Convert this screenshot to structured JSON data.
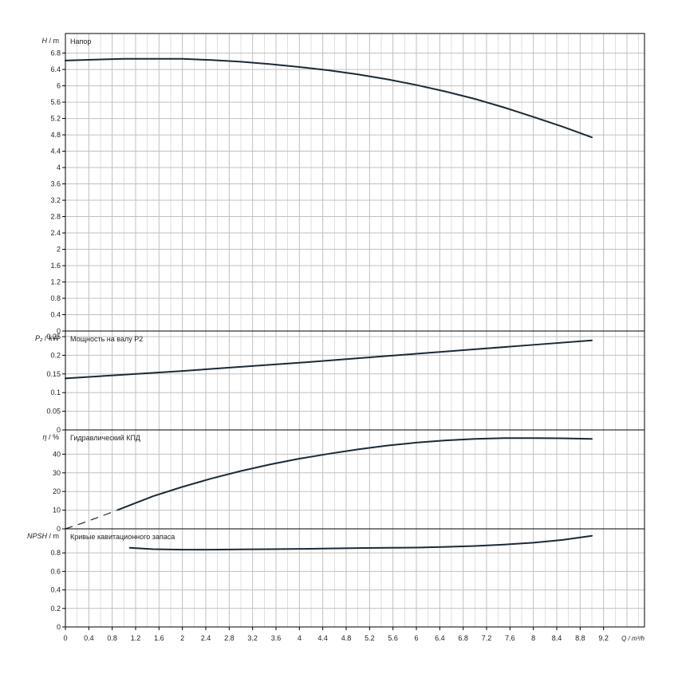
{
  "chart_data": [
    {
      "type": "line",
      "title": "Напор",
      "ylabel_symbol": "H",
      "ylabel_unit": "m",
      "xlim": [
        0,
        9.9
      ],
      "ylim": [
        0,
        7.28
      ],
      "yticks": [
        "0",
        "0.4",
        "0.8",
        "1.2",
        "1.6",
        "2",
        "2.4",
        "2.8",
        "3.2",
        "3.6",
        "4",
        "4.4",
        "4.8",
        "5.2",
        "5.6",
        "6",
        "6.4",
        "6.8"
      ],
      "series": [
        {
          "x": [
            0,
            0.5,
            1.0,
            1.5,
            2.0,
            2.5,
            3.0,
            3.5,
            4.0,
            4.5,
            5.0,
            5.5,
            6.0,
            6.5,
            7.0,
            7.5,
            8.0,
            8.5,
            9.0
          ],
          "y": [
            6.62,
            6.64,
            6.66,
            6.66,
            6.66,
            6.63,
            6.59,
            6.53,
            6.46,
            6.38,
            6.28,
            6.16,
            6.02,
            5.86,
            5.68,
            5.47,
            5.24,
            5.0,
            4.74
          ]
        }
      ]
    },
    {
      "type": "line",
      "title": "Мощность на валу P2",
      "ylabel_symbol": "P₂",
      "ylabel_unit": "kW",
      "xlim": [
        0,
        9.9
      ],
      "ylim": [
        0,
        0.265
      ],
      "yticks": [
        "0",
        "0.05",
        "0.1",
        "0.15",
        "0.2",
        "0.25"
      ],
      "series": [
        {
          "x": [
            0,
            1,
            2,
            3,
            4,
            5,
            6,
            7,
            8,
            9
          ],
          "y": [
            0.138,
            0.148,
            0.158,
            0.169,
            0.18,
            0.192,
            0.204,
            0.216,
            0.228,
            0.24
          ]
        }
      ]
    },
    {
      "type": "line",
      "title": "Гидравлический КПД",
      "ylabel_symbol": "η",
      "ylabel_unit": "%",
      "xlim": [
        0,
        9.9
      ],
      "ylim": [
        0,
        53
      ],
      "yticks": [
        "0",
        "10",
        "20",
        "30",
        "40"
      ],
      "series": [
        {
          "style": "dashed",
          "x": [
            0,
            0.3,
            0.6,
            0.9
          ],
          "y": [
            0,
            3.2,
            6.6,
            10.2
          ]
        },
        {
          "x": [
            0.9,
            1.5,
            2.0,
            2.5,
            3.0,
            3.5,
            4.0,
            4.5,
            5.0,
            5.5,
            6.0,
            6.5,
            7.0,
            7.5,
            8.0,
            8.5,
            9.0
          ],
          "y": [
            10.2,
            17.5,
            22.5,
            27.0,
            31.0,
            34.5,
            37.6,
            40.2,
            42.6,
            44.6,
            46.2,
            47.4,
            48.2,
            48.6,
            48.6,
            48.5,
            48.2
          ]
        }
      ]
    },
    {
      "type": "line",
      "title": "Кривые кавитационного запаса",
      "ylabel_symbol": "NPSH",
      "ylabel_unit": "m",
      "xlim": [
        0,
        9.9
      ],
      "ylim": [
        0,
        1.06
      ],
      "yticks": [
        "0",
        "0.2",
        "0.4",
        "0.6",
        "0.8"
      ],
      "series": [
        {
          "x": [
            1.1,
            1.5,
            2.0,
            2.5,
            3.0,
            3.5,
            4.0,
            4.5,
            5.0,
            5.5,
            6.0,
            6.5,
            7.0,
            7.5,
            8.0,
            8.5,
            9.0
          ],
          "y": [
            0.855,
            0.84,
            0.835,
            0.835,
            0.838,
            0.84,
            0.843,
            0.848,
            0.852,
            0.855,
            0.858,
            0.865,
            0.875,
            0.89,
            0.91,
            0.94,
            0.985
          ]
        }
      ]
    }
  ],
  "x_axis": {
    "ticks": [
      "0",
      "0.4",
      "0.8",
      "1.2",
      "1.6",
      "2",
      "2.4",
      "2.8",
      "3.2",
      "3.6",
      "4",
      "4.4",
      "4.8",
      "5.2",
      "5.6",
      "6",
      "6.4",
      "6.8",
      "7.2",
      "7.6",
      "8",
      "8.4",
      "8.8",
      "9.2"
    ],
    "label": "Q / m³/h"
  },
  "colors": {
    "curve": "#1a2a38",
    "grid": "#c0c0c0",
    "axis": "#000000"
  }
}
